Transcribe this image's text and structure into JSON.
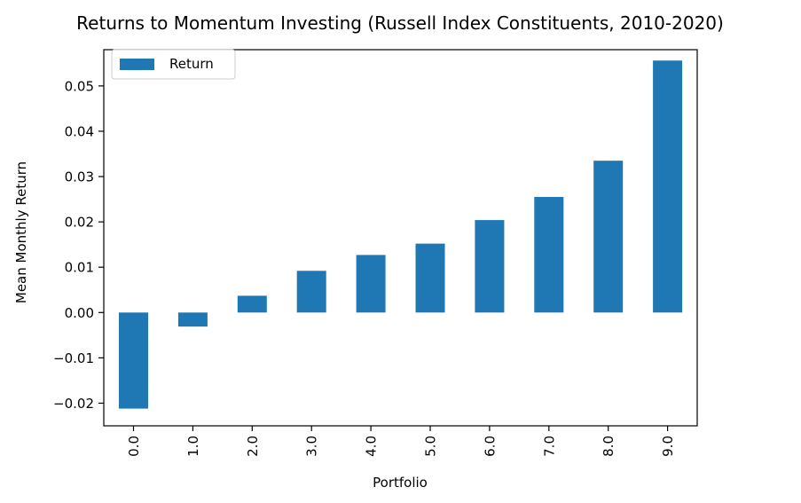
{
  "chart_data": {
    "type": "bar",
    "title": "Returns to Momentum Investing (Russell Index Constituents, 2010-2020)",
    "xlabel": "Portfolio",
    "ylabel": "Mean Monthly Return",
    "categories": [
      "0.0",
      "1.0",
      "2.0",
      "3.0",
      "4.0",
      "5.0",
      "6.0",
      "7.0",
      "8.0",
      "9.0"
    ],
    "series": [
      {
        "name": "Return",
        "color": "#1f77b4",
        "values": [
          -0.0212,
          -0.0031,
          0.0037,
          0.0092,
          0.0127,
          0.0152,
          0.0204,
          0.0255,
          0.0335,
          0.0556
        ]
      }
    ],
    "ylim": [
      -0.025,
      0.058
    ],
    "yticks": [
      -0.02,
      -0.01,
      0.0,
      0.01,
      0.02,
      0.03,
      0.04,
      0.05
    ],
    "ytick_labels": [
      "−0.02",
      "−0.01",
      "0.00",
      "0.01",
      "0.02",
      "0.03",
      "0.04",
      "0.05"
    ],
    "grid": false,
    "legend_position": "top-left"
  }
}
